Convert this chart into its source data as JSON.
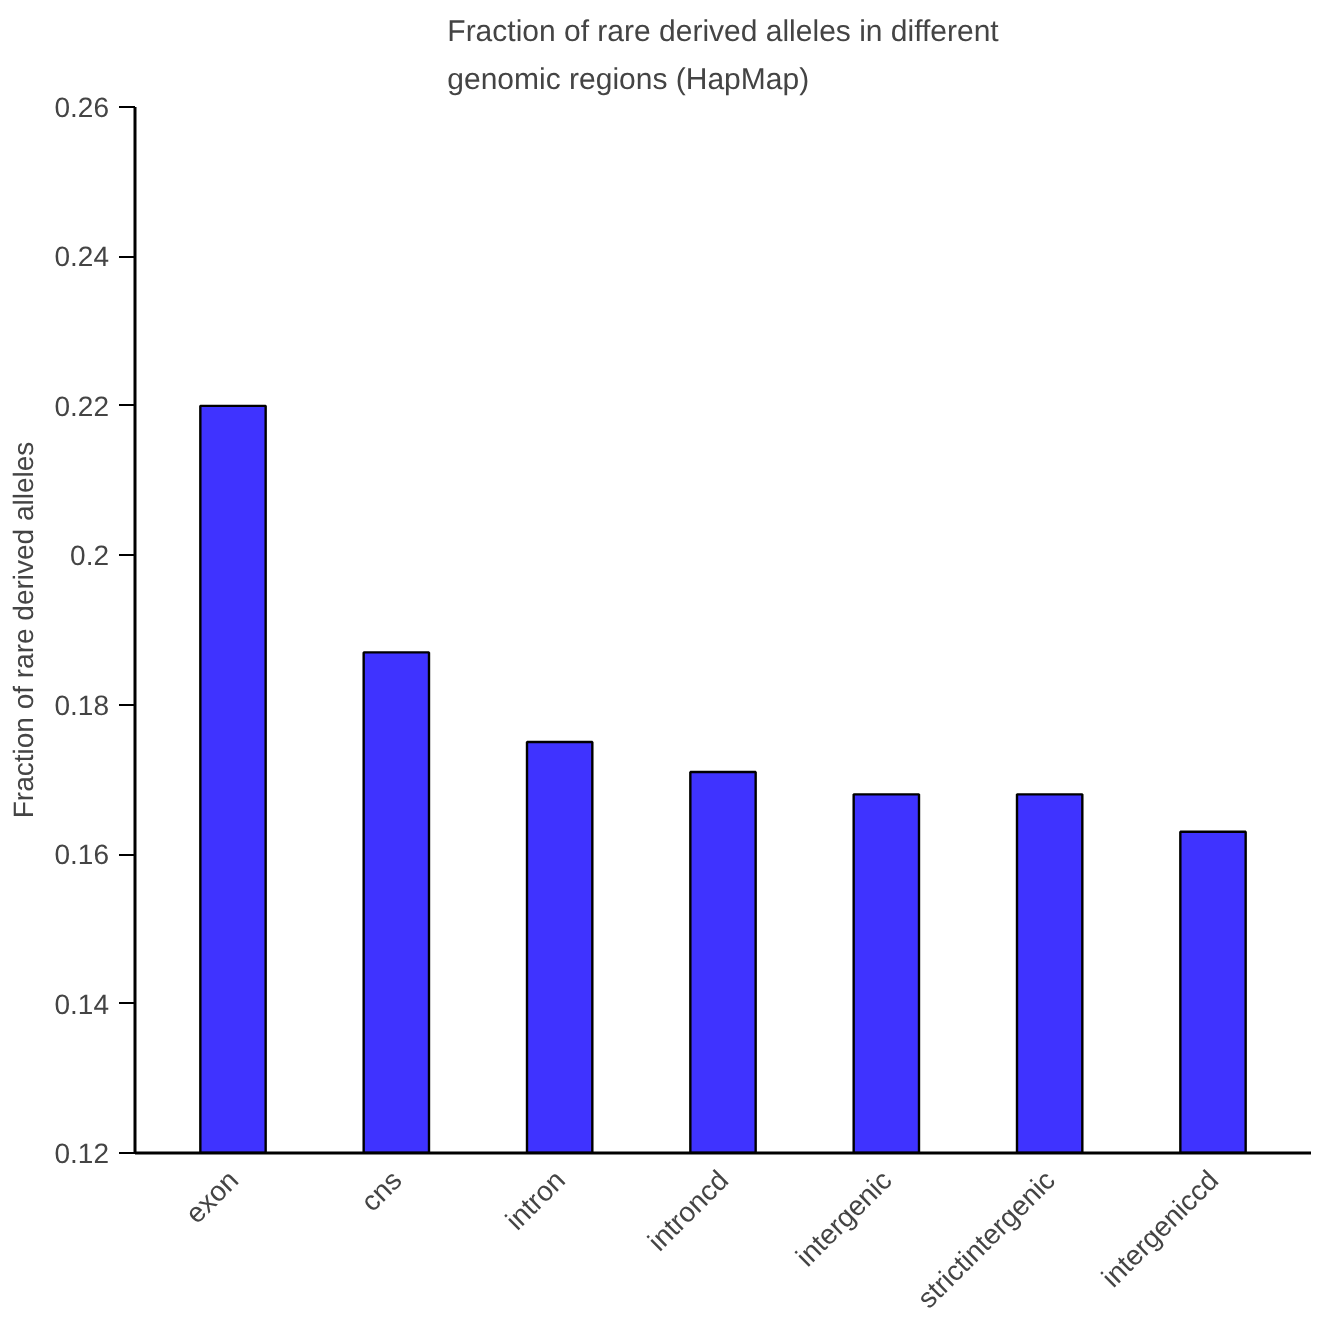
{
  "chart_data": {
    "type": "bar",
    "title": "Fraction of rare derived alleles in different genomic regions (HapMap)",
    "ylabel": "Fraction of rare derived alleles",
    "categories": [
      "exon",
      "cns",
      "intron",
      "introncd",
      "intergenic",
      "strictintergenic",
      "intergeniccd"
    ],
    "values": [
      0.22,
      0.187,
      0.175,
      0.171,
      0.168,
      0.168,
      0.163
    ],
    "color": "#3f33ff",
    "ylim": [
      0.12,
      0.26
    ],
    "yticks": [
      0.12,
      0.14,
      0.16,
      0.18,
      {
        "value": 0.2,
        "label": "0.2"
      },
      0.22,
      0.24,
      0.26
    ],
    "grid": false
  }
}
